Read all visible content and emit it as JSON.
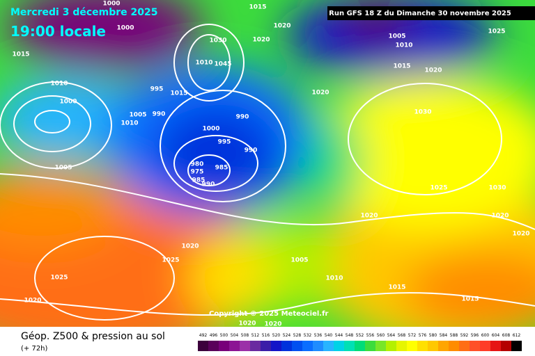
{
  "header": {
    "date": "Mercredi 3 décembre 2025",
    "time": "19:00 locale",
    "run": "Run GFS 18 Z du Dimanche 30 novembre 2025"
  },
  "copyright": "Copyright © 2025 Meteociel.fr",
  "footer": {
    "title": "Géop. Z500 & pression au sol",
    "lead": "(+ 72h)"
  },
  "isobar_labels": [
    "1000",
    "1015",
    "1000",
    "1020",
    "1020",
    "1030",
    "1005",
    "1010",
    "1025",
    "1015",
    "1010",
    "1045",
    "1015",
    "1020",
    "1010",
    "995",
    "1015",
    "1020",
    "1000",
    "990",
    "1005",
    "1030",
    "1010",
    "990",
    "1000",
    "995",
    "990",
    "1005",
    "980",
    "985",
    "975",
    "985",
    "990",
    "1025",
    "1030",
    "1020",
    "1020",
    "1020",
    "1020",
    "1025",
    "1005",
    "1025",
    "1010",
    "1015",
    "1020",
    "1015",
    "1020",
    "1020"
  ],
  "color_scale": {
    "values": [
      492,
      496,
      500,
      504,
      508,
      512,
      516,
      520,
      524,
      528,
      532,
      536,
      540,
      544,
      548,
      552,
      556,
      560,
      564,
      568,
      572,
      576,
      580,
      584,
      588,
      592,
      596,
      600,
      604,
      608,
      612
    ],
    "colors": [
      "#3c003c",
      "#5a005a",
      "#78007a",
      "#8c1494",
      "#9b30a8",
      "#6a2aa0",
      "#3a1ea8",
      "#1414c8",
      "#0032dc",
      "#0050f0",
      "#0a6eff",
      "#1e8cff",
      "#28b4ff",
      "#00d2e6",
      "#00e0b4",
      "#00dc78",
      "#3cdc3c",
      "#78e628",
      "#b4f000",
      "#e6f500",
      "#ffff00",
      "#ffe000",
      "#ffc800",
      "#ffa500",
      "#ff8c00",
      "#ff6e14",
      "#ff5028",
      "#ff3c28",
      "#e61414",
      "#b40000",
      "#000000"
    ]
  }
}
